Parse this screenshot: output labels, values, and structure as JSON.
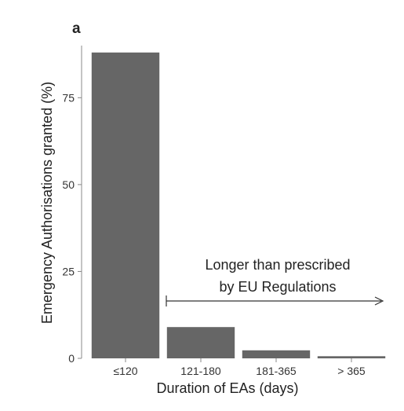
{
  "chart_data": {
    "type": "bar",
    "panel_label": "a",
    "categories": [
      "≤120",
      "121-180",
      "181-365",
      "> 365"
    ],
    "values": [
      88,
      9,
      2.3,
      0.6
    ],
    "xlabel": "Duration of EAs (days)",
    "ylabel": "Emergency Authorisations granted (%)",
    "ylim": [
      0,
      90
    ],
    "yticks": [
      0,
      25,
      50,
      75
    ],
    "grid": false,
    "legend": "none",
    "bar_color": "#666666",
    "annotation": {
      "lines": [
        "Longer than prescribed",
        "by EU Regulations"
      ],
      "arrow_span": [
        "121-180",
        "> 365"
      ]
    }
  }
}
